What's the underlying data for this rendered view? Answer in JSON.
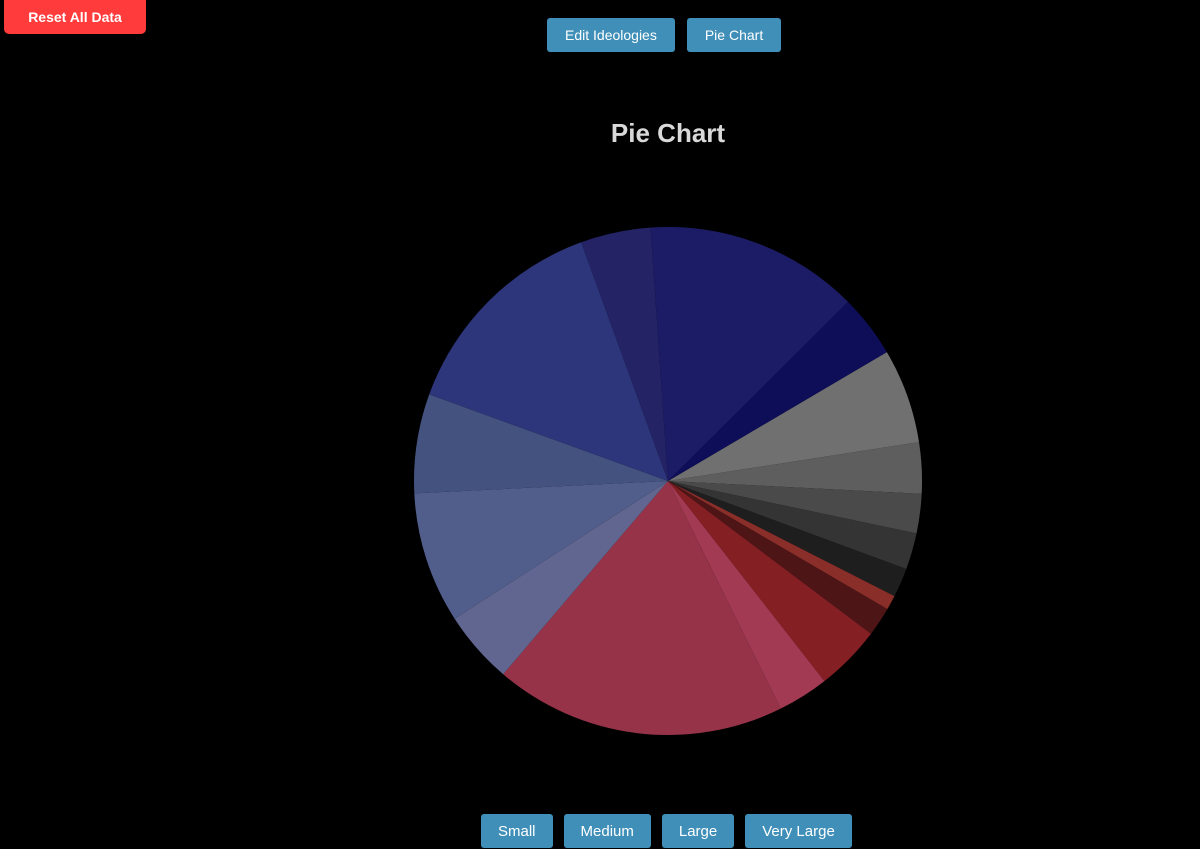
{
  "toolbar": {
    "reset_label": "Reset All Data",
    "edit_label": "Edit Ideologies",
    "pie_label": "Pie Chart"
  },
  "sizes": {
    "small": "Small",
    "medium": "Medium",
    "large": "Large",
    "very_large": "Very Large"
  },
  "chart_data": {
    "type": "pie",
    "title": "Pie Chart",
    "legend": "none",
    "slices": [
      {
        "value": 6.5,
        "color": "#707070"
      },
      {
        "value": 3.5,
        "color": "#5e5e5e"
      },
      {
        "value": 2.7,
        "color": "#4a4a4a"
      },
      {
        "value": 2.5,
        "color": "#343434"
      },
      {
        "value": 2.0,
        "color": "#1e1e1e"
      },
      {
        "value": 1.0,
        "color": "#8a2e2a"
      },
      {
        "value": 2.0,
        "color": "#4e1516"
      },
      {
        "value": 4.5,
        "color": "#841f24"
      },
      {
        "value": 3.5,
        "color": "#a13a52"
      },
      {
        "value": 20.0,
        "color": "#973349"
      },
      {
        "value": 5.0,
        "color": "#60668f"
      },
      {
        "value": 9.0,
        "color": "#515d8b"
      },
      {
        "value": 6.8,
        "color": "#43527f"
      },
      {
        "value": 15.0,
        "color": "#2d357b"
      },
      {
        "value": 4.8,
        "color": "#232366"
      },
      {
        "value": 14.7,
        "color": "#1c1c66"
      },
      {
        "value": 4.3,
        "color": "#0e0e58"
      }
    ]
  }
}
